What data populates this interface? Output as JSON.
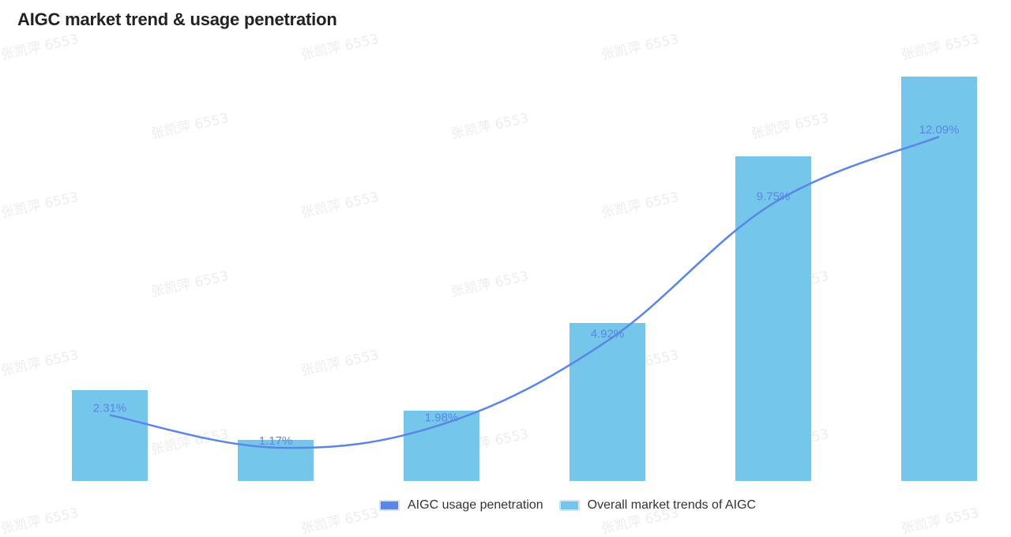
{
  "title": "AIGC market trend & usage penetration",
  "watermark_text": "张凯萍 6553",
  "colors": {
    "bar": "#74c6ea",
    "line": "#5b86e5",
    "label": "#5b86e5"
  },
  "legend": [
    {
      "label": "AIGC usage penetration",
      "color": "#5b86e5"
    },
    {
      "label": "Overall market trends of AIGC",
      "color": "#74c6ea"
    }
  ],
  "chart_data": {
    "type": "bar",
    "title": "AIGC market trend & usage penetration",
    "categories": [
      "",
      "",
      "",
      "",
      "",
      ""
    ],
    "legend_position": "bottom",
    "grid": false,
    "series": [
      {
        "name": "Overall market trends of AIGC",
        "type": "bar",
        "values": [
          115,
          52,
          89,
          200,
          411,
          512
        ],
        "ylim": [
          0,
          512
        ]
      },
      {
        "name": "AIGC usage penetration",
        "type": "line",
        "values": [
          2.31,
          1.17,
          1.98,
          4.92,
          9.75,
          12.09
        ],
        "value_labels": [
          "2.31%",
          "1.17%",
          "1.98%",
          "4.92%",
          "9.75%",
          "12.09%"
        ],
        "ylim": [
          0,
          14.2
        ]
      }
    ]
  }
}
